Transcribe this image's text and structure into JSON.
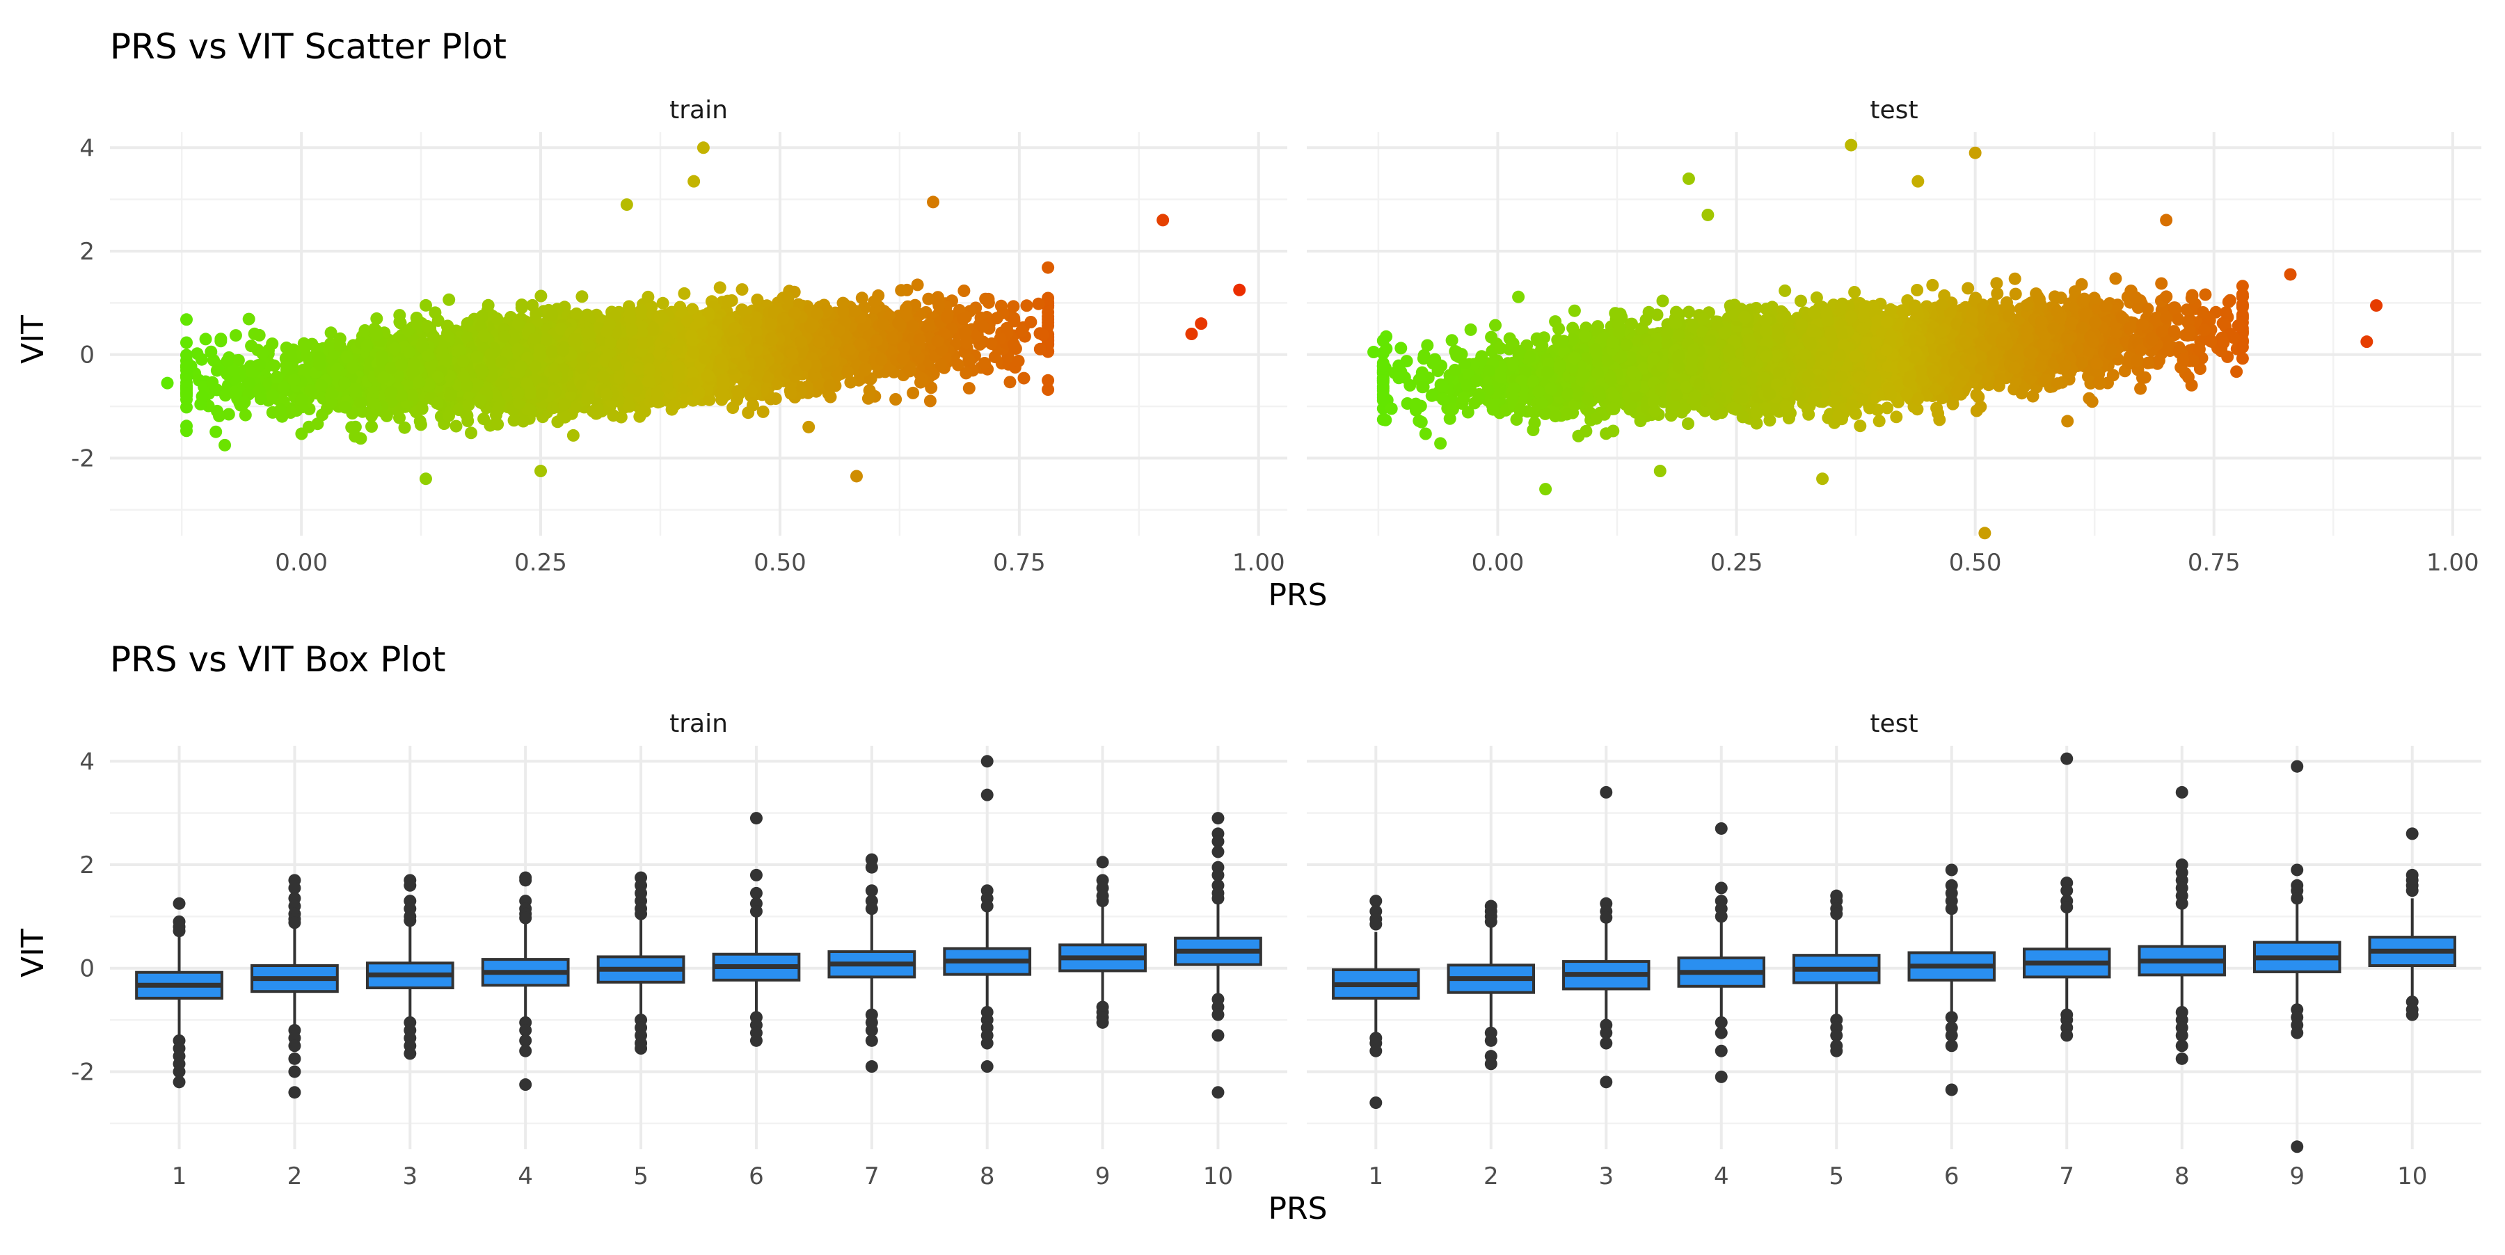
{
  "chart_data": [
    {
      "type": "scatter",
      "title": "PRS vs VIT Scatter Plot",
      "xlabel": "PRS",
      "ylabel": "VIT",
      "facets": [
        "train",
        "test"
      ],
      "xlim": [
        -0.2,
        1.03
      ],
      "ylim": [
        -3.5,
        4.3
      ],
      "x_ticks": [
        "0.00",
        "0.25",
        "0.50",
        "0.75",
        "1.00"
      ],
      "y_ticks": [
        "-2",
        "0",
        "2",
        "4"
      ],
      "grid": true,
      "color_scale": {
        "low": "#55ee00",
        "mid": "#c4b400",
        "high": "#ee2200",
        "mapped_to": "PRS"
      },
      "trend": {
        "slope": 1.15,
        "intercept": -0.45
      },
      "notable_points": {
        "train": [
          [
            0.42,
            4.0
          ],
          [
            0.41,
            3.35
          ],
          [
            0.34,
            2.9
          ],
          [
            0.66,
            2.95
          ],
          [
            0.9,
            2.6
          ],
          [
            0.98,
            1.25
          ],
          [
            0.94,
            0.6
          ],
          [
            0.93,
            0.4
          ],
          [
            -0.14,
            -0.55
          ],
          [
            -0.08,
            -1.75
          ],
          [
            0.13,
            -2.4
          ],
          [
            0.58,
            -2.35
          ],
          [
            0.25,
            -2.25
          ],
          [
            -0.1,
            0.3
          ],
          [
            0.53,
            -1.4
          ]
        ],
        "test": [
          [
            0.37,
            4.05
          ],
          [
            0.5,
            3.9
          ],
          [
            0.44,
            3.35
          ],
          [
            0.2,
            3.4
          ],
          [
            0.22,
            2.7
          ],
          [
            0.7,
            2.6
          ],
          [
            0.92,
            0.95
          ],
          [
            0.91,
            0.25
          ],
          [
            0.83,
            1.55
          ],
          [
            -0.13,
            0.05
          ],
          [
            -0.12,
            -0.7
          ],
          [
            0.05,
            -2.6
          ],
          [
            0.34,
            -2.4
          ],
          [
            0.51,
            -3.45
          ],
          [
            0.17,
            -2.25
          ]
        ]
      }
    },
    {
      "type": "box",
      "title": "PRS vs VIT Box Plot",
      "xlabel": "PRS",
      "ylabel": "VIT",
      "categories": [
        "1",
        "2",
        "3",
        "4",
        "5",
        "6",
        "7",
        "8",
        "9",
        "10"
      ],
      "ylim": [
        -3.5,
        4.3
      ],
      "y_ticks": [
        "-2",
        "0",
        "2",
        "4"
      ],
      "fill": "#2a8ff0",
      "grid": true,
      "series": [
        {
          "name": "train",
          "boxes": [
            {
              "q1": -0.58,
              "median": -0.33,
              "q3": -0.08,
              "whisker_low": -1.3,
              "whisker_high": 0.65,
              "outliers": [
                1.25,
                0.9,
                0.8,
                0.72,
                -1.4,
                -1.55,
                -1.7,
                -1.85,
                -2.0,
                -2.2
              ]
            },
            {
              "q1": -0.45,
              "median": -0.2,
              "q3": 0.05,
              "whisker_low": -1.15,
              "whisker_high": 0.78,
              "outliers": [
                1.7,
                1.55,
                1.35,
                1.2,
                1.05,
                0.95,
                0.88,
                -1.2,
                -1.35,
                -1.5,
                -1.75,
                -2.0,
                -2.4
              ]
            },
            {
              "q1": -0.38,
              "median": -0.13,
              "q3": 0.1,
              "whisker_low": -1.0,
              "whisker_high": 0.85,
              "outliers": [
                1.7,
                1.6,
                1.3,
                1.15,
                1.0,
                0.92,
                -1.05,
                -1.2,
                -1.35,
                -1.5,
                -1.65
              ]
            },
            {
              "q1": -0.33,
              "median": -0.08,
              "q3": 0.17,
              "whisker_low": -1.0,
              "whisker_high": 0.9,
              "outliers": [
                1.75,
                1.7,
                1.3,
                1.15,
                1.05,
                0.97,
                -1.05,
                -1.2,
                -1.4,
                -1.6,
                -2.25
              ]
            },
            {
              "q1": -0.27,
              "median": -0.02,
              "q3": 0.22,
              "whisker_low": -0.95,
              "whisker_high": 0.95,
              "outliers": [
                1.75,
                1.6,
                1.45,
                1.3,
                1.15,
                1.05,
                -1.0,
                -1.15,
                -1.3,
                -1.45,
                -1.55
              ]
            },
            {
              "q1": -0.23,
              "median": 0.03,
              "q3": 0.27,
              "whisker_low": -0.9,
              "whisker_high": 1.0,
              "outliers": [
                2.9,
                1.8,
                1.45,
                1.25,
                1.1,
                -0.95,
                -1.1,
                -1.25,
                -1.4
              ]
            },
            {
              "q1": -0.17,
              "median": 0.08,
              "q3": 0.32,
              "whisker_low": -0.85,
              "whisker_high": 1.05,
              "outliers": [
                2.1,
                1.95,
                1.5,
                1.3,
                1.15,
                -0.9,
                -1.05,
                -1.2,
                -1.4,
                -1.9
              ]
            },
            {
              "q1": -0.12,
              "median": 0.14,
              "q3": 0.38,
              "whisker_low": -0.82,
              "whisker_high": 1.1,
              "outliers": [
                4.0,
                3.35,
                1.5,
                1.35,
                1.2,
                -0.85,
                -1.0,
                -1.15,
                -1.3,
                -1.45,
                -1.9
              ]
            },
            {
              "q1": -0.05,
              "median": 0.2,
              "q3": 0.45,
              "whisker_low": -0.72,
              "whisker_high": 1.2,
              "outliers": [
                2.05,
                1.7,
                1.55,
                1.4,
                1.3,
                -0.75,
                -0.85,
                -0.95,
                -1.05
              ]
            },
            {
              "q1": 0.07,
              "median": 0.33,
              "q3": 0.58,
              "whisker_low": -0.55,
              "whisker_high": 1.3,
              "outliers": [
                2.9,
                2.6,
                2.45,
                2.25,
                1.95,
                1.8,
                1.6,
                1.45,
                1.35,
                -0.6,
                -0.75,
                -0.9,
                -1.3,
                -2.4
              ]
            }
          ]
        },
        {
          "name": "test",
          "boxes": [
            {
              "q1": -0.58,
              "median": -0.32,
              "q3": -0.03,
              "whisker_low": -1.3,
              "whisker_high": 0.7,
              "outliers": [
                1.3,
                1.1,
                0.95,
                0.85,
                -1.35,
                -1.45,
                -1.6,
                -2.6
              ]
            },
            {
              "q1": -0.47,
              "median": -0.2,
              "q3": 0.06,
              "whisker_low": -1.15,
              "whisker_high": 0.8,
              "outliers": [
                1.2,
                1.1,
                1.0,
                0.9,
                -1.25,
                -1.4,
                -1.7,
                -1.85
              ]
            },
            {
              "q1": -0.4,
              "median": -0.12,
              "q3": 0.13,
              "whisker_low": -1.05,
              "whisker_high": 0.87,
              "outliers": [
                3.4,
                1.25,
                1.1,
                0.98,
                -1.1,
                -1.25,
                -1.45,
                -2.2
              ]
            },
            {
              "q1": -0.35,
              "median": -0.08,
              "q3": 0.2,
              "whisker_low": -1.0,
              "whisker_high": 0.92,
              "outliers": [
                2.7,
                1.55,
                1.3,
                1.15,
                1.0,
                -1.05,
                -1.25,
                -1.6,
                -2.1
              ]
            },
            {
              "q1": -0.28,
              "median": -0.02,
              "q3": 0.25,
              "whisker_low": -0.95,
              "whisker_high": 0.97,
              "outliers": [
                1.4,
                1.3,
                1.15,
                1.05,
                -1.0,
                -1.15,
                -1.3,
                -1.5,
                -1.6
              ]
            },
            {
              "q1": -0.23,
              "median": 0.04,
              "q3": 0.3,
              "whisker_low": -0.9,
              "whisker_high": 1.03,
              "outliers": [
                1.9,
                1.6,
                1.45,
                1.3,
                1.15,
                -0.95,
                -1.15,
                -1.3,
                -1.5,
                -2.35
              ]
            },
            {
              "q1": -0.17,
              "median": 0.1,
              "q3": 0.37,
              "whisker_low": -0.85,
              "whisker_high": 1.1,
              "outliers": [
                4.05,
                1.65,
                1.5,
                1.3,
                1.18,
                -0.9,
                -1.0,
                -1.15,
                -1.3
              ]
            },
            {
              "q1": -0.13,
              "median": 0.14,
              "q3": 0.42,
              "whisker_low": -0.82,
              "whisker_high": 1.15,
              "outliers": [
                3.4,
                2.0,
                1.85,
                1.7,
                1.55,
                1.4,
                1.25,
                -0.85,
                -1.0,
                -1.15,
                -1.3,
                -1.5,
                -1.75
              ]
            },
            {
              "q1": -0.07,
              "median": 0.2,
              "q3": 0.5,
              "whisker_low": -0.75,
              "whisker_high": 1.25,
              "outliers": [
                3.9,
                1.9,
                1.6,
                1.5,
                1.35,
                -0.8,
                -0.95,
                -1.1,
                -1.25,
                -3.45
              ]
            },
            {
              "q1": 0.05,
              "median": 0.33,
              "q3": 0.6,
              "whisker_low": -0.6,
              "whisker_high": 1.35,
              "outliers": [
                2.6,
                1.8,
                1.7,
                1.6,
                1.5,
                -0.65,
                -0.8,
                -0.9
              ]
            }
          ]
        }
      ]
    }
  ]
}
